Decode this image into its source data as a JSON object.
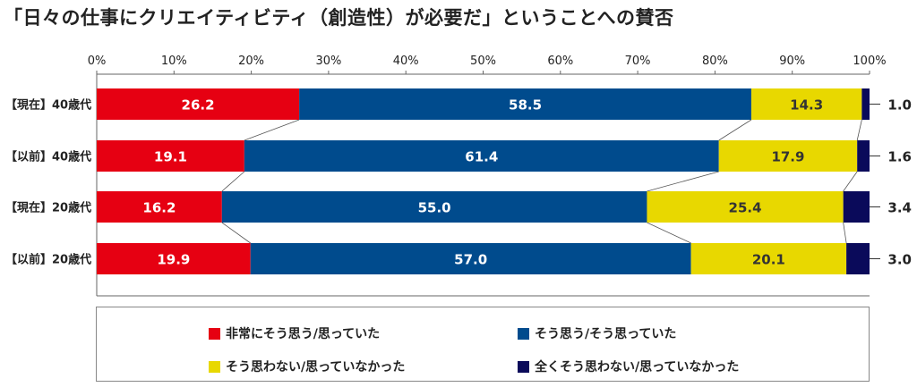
{
  "title": "「日々の仕事にクリエイティビティ（創造性）が必要だ」ということへの賛否",
  "colors": {
    "series0": "#e60012",
    "series1": "#004b8d",
    "series2": "#e8d800",
    "series3": "#0a0a5a",
    "label_light": "#ffffff",
    "label_dark": "#333333"
  },
  "chart_data": {
    "type": "bar",
    "orientation": "horizontal",
    "stacked": true,
    "xlim": [
      0,
      100
    ],
    "xticks": [
      "0%",
      "10%",
      "20%",
      "30%",
      "40%",
      "50%",
      "60%",
      "70%",
      "80%",
      "90%",
      "100%"
    ],
    "categories": [
      "【現在】40歳代",
      "【以前】40歳代",
      "【現在】20歳代",
      "【以前】20歳代"
    ],
    "series": [
      {
        "name": "非常にそう思う/思っていた",
        "values": [
          26.2,
          19.1,
          16.2,
          19.9
        ]
      },
      {
        "name": "そう思う/そう思っていた",
        "values": [
          58.5,
          61.4,
          55.0,
          57.0
        ]
      },
      {
        "name": "そう思わない/思っていなかった",
        "values": [
          14.3,
          17.9,
          25.4,
          20.1
        ]
      },
      {
        "name": "全くそう思わない/思っていなかった",
        "values": [
          1.0,
          1.6,
          3.4,
          3.0
        ]
      }
    ],
    "value_labels": [
      [
        "26.2",
        "58.5",
        "14.3",
        "1.0"
      ],
      [
        "19.1",
        "61.4",
        "17.9",
        "1.6"
      ],
      [
        "16.2",
        "55.0",
        "25.4",
        "3.4"
      ],
      [
        "19.9",
        "57.0",
        "20.1",
        "3.0"
      ]
    ],
    "legend_position": "bottom",
    "grid": false
  }
}
